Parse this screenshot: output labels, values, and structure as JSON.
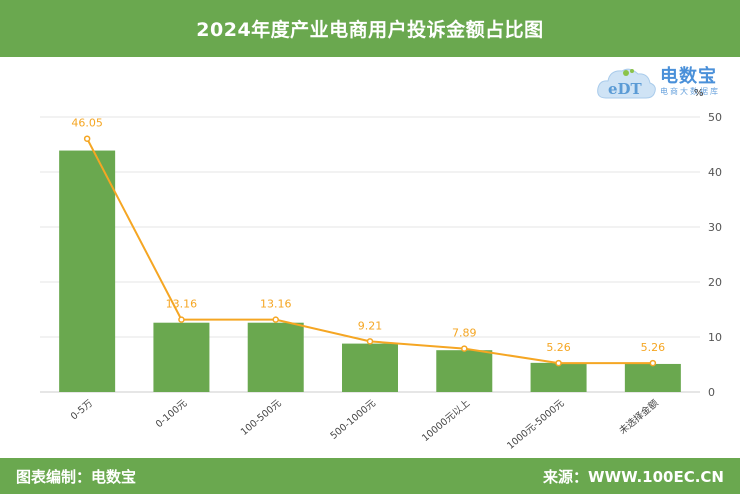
{
  "header": {
    "title": "2024年度产业电商用户投诉金额占比图"
  },
  "logo": {
    "brand": "电数宝",
    "sub": "电商大数据库",
    "mark_text": "eDT"
  },
  "footer": {
    "left": "图表编制：电数宝",
    "right": "来源：WWW.100EC.CN"
  },
  "colors": {
    "accent": "#6aa84f",
    "bar": "#6aa84f",
    "line": "#f5a623",
    "grid": "#e6e6e6"
  },
  "chart_data": {
    "type": "bar",
    "title": "2024年度产业电商用户投诉金额占比图",
    "categories": [
      "0-5万",
      "0-100元",
      "100-500元",
      "500-1000元",
      "10000元以上",
      "1000元-5000元",
      "未选择金额"
    ],
    "series": [
      {
        "type": "bar",
        "values": [
          43.9,
          12.6,
          12.6,
          8.8,
          7.6,
          5.3,
          5.1
        ]
      },
      {
        "type": "line",
        "values": [
          46.05,
          13.16,
          13.16,
          9.21,
          7.89,
          5.26,
          5.26
        ],
        "data_labels": [
          "46.05",
          "13.16",
          "13.16",
          "9.21",
          "7.89",
          "5.26",
          "5.26"
        ]
      }
    ],
    "y_axis": {
      "position": "right",
      "unit": "%",
      "min": 0,
      "max": 50,
      "ticks": [
        "0",
        "10",
        "20",
        "30",
        "40",
        "50"
      ]
    },
    "grid": true,
    "legend": "none"
  }
}
